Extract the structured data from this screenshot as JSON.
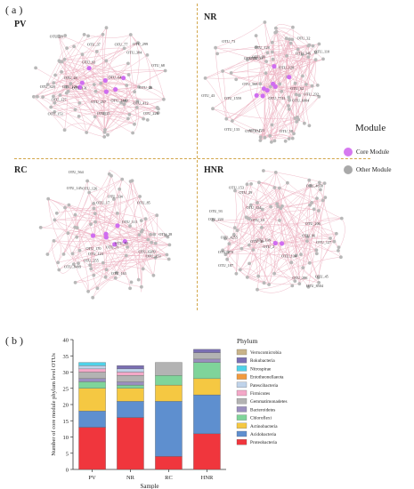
{
  "panel_a": {
    "label": "( a )",
    "networks": [
      {
        "name": "PV",
        "otus": [
          "OTU_64",
          "OTU_127",
          "OTU_257",
          "OTU_328",
          "OTU_28",
          "OTU_28",
          "OTU_412",
          "OTU_77",
          "OTU_26",
          "OTU_1449",
          "OTU_93",
          "OTU_37",
          "OTU_68",
          "OTU_131",
          "OTU_226",
          "OTU_299",
          "OTU_153",
          "OTU_126",
          "OTU_25",
          "OTU_384"
        ]
      },
      {
        "name": "NR",
        "otus": [
          "OTU_6004",
          "OTU_7741",
          "OTU_174",
          "OTU_73",
          "OTU_128",
          "OTU_43",
          "OTU_232",
          "OTU_723",
          "OTU_128",
          "OTU_33",
          "OTU_22",
          "OTU_1559",
          "OTU_32",
          "OTU_133",
          "OTU_346",
          "OTU_110",
          "OTU_90",
          "OTU_568",
          "OTU_58",
          "OTU_62"
        ]
      },
      {
        "name": "RC",
        "otus": [
          "OTU_255",
          "OTU_564",
          "OTU_85",
          "OTU_163",
          "OTU_334",
          "OTU_126",
          "OTU_353",
          "OTU_8499",
          "OTU_6289",
          "OTU_124",
          "OTU_145",
          "OTU_170",
          "OTU_71",
          "OTU_84",
          "OTU_17",
          "OTU_28",
          "OTU_113"
        ]
      },
      {
        "name": "HNR",
        "otus": [
          "OTU_93",
          "OTU_40",
          "OTU_45",
          "OTU_134",
          "OTU_138",
          "OTU_334",
          "OTU_286",
          "OTU_8504",
          "OTU_206",
          "OTU_4658",
          "OTU_96",
          "OTU_224",
          "OTU_4255",
          "OTU_2",
          "OTU_29",
          "OTU_270",
          "OTU_187",
          "OTU_153",
          "OTU_127",
          "OTU_10"
        ]
      }
    ],
    "legend": {
      "title": "Module",
      "items": [
        {
          "label": "Core Module",
          "color": "#d679f0"
        },
        {
          "label": "Other Module",
          "color": "#a9a9a9"
        }
      ]
    },
    "colors": {
      "edge": "#e79aae",
      "node": "#b8b8b8",
      "core": "#cf6df0",
      "divider": "#d2a64a"
    }
  },
  "panel_b": {
    "label": "( b )"
  },
  "chart_data": {
    "type": "bar",
    "stacked": true,
    "categories": [
      "PV",
      "NR",
      "RC",
      "HNR"
    ],
    "xlabel": "Sample",
    "ylabel": "Number of core module phylum level OTUs",
    "ylim": [
      0,
      40
    ],
    "yticks": [
      0,
      5,
      10,
      15,
      20,
      25,
      30,
      35,
      40
    ],
    "grid": false,
    "legend": {
      "title": "Phylum",
      "placement": "right"
    },
    "series": [
      {
        "name": "Proteobacteria",
        "color": "#f0363d",
        "values": [
          13,
          16,
          4,
          11
        ]
      },
      {
        "name": "Acidobacteria",
        "color": "#5e8fcf",
        "values": [
          5,
          5,
          17,
          12
        ]
      },
      {
        "name": "Actinobacteria",
        "color": "#f5c842",
        "values": [
          7,
          4,
          5,
          5
        ]
      },
      {
        "name": "Chloroflexi",
        "color": "#7fd49a",
        "values": [
          2,
          1,
          3,
          5
        ]
      },
      {
        "name": "Bacteroidetes",
        "color": "#9b8fbf",
        "values": [
          1,
          1,
          0,
          1
        ]
      },
      {
        "name": "Gemmatimonadetes",
        "color": "#b3b3b3",
        "values": [
          2,
          2,
          4,
          2
        ]
      },
      {
        "name": "Firmicutes",
        "color": "#f4a8c8",
        "values": [
          1,
          1,
          0,
          0
        ]
      },
      {
        "name": "Patescibacteria",
        "color": "#bfd3ea",
        "values": [
          1,
          1,
          0,
          0
        ]
      },
      {
        "name": "Entotheonellaeota",
        "color": "#f29a3d",
        "values": [
          0,
          0,
          0,
          0
        ]
      },
      {
        "name": "Nitrospirae",
        "color": "#4fd2e8",
        "values": [
          1,
          0,
          0,
          0
        ]
      },
      {
        "name": "Rokubacteria",
        "color": "#7a6fb3",
        "values": [
          0,
          1,
          0,
          1
        ]
      },
      {
        "name": "Verrucomicrobia",
        "color": "#c9b48a",
        "values": [
          0,
          0,
          0,
          0
        ]
      }
    ]
  }
}
